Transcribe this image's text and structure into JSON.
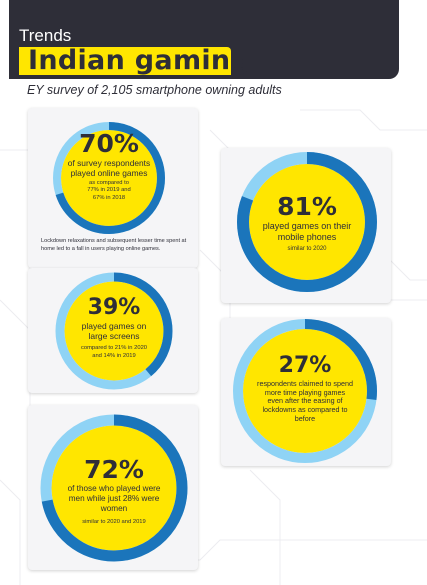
{
  "header": {
    "kicker": "Trends",
    "title": "Indian gaming",
    "subtitle": "EY survey of 2,105 smartphone owning adults"
  },
  "colors": {
    "header_bg": "#2e2e38",
    "accent_yellow": "#ffe600",
    "ring_dark_blue": "#1b75bb",
    "ring_light_blue": "#8fd3f5",
    "card_bg": "#f5f5f7"
  },
  "stats": [
    {
      "value": 70,
      "pct_label": "70%",
      "desc": "of survey respondents played online games",
      "detail": "as compared to 77% in 2019 and 67% in 2018",
      "note": "Lockdown relaxations and subsequent lesser time spent at home led to a fall in users playing online games."
    },
    {
      "value": 81,
      "pct_label": "81%",
      "desc": "played games on their mobile phones",
      "detail": "similar to 2020"
    },
    {
      "value": 39,
      "pct_label": "39%",
      "desc": "played games on large screens",
      "detail": "compared to 21% in 2020 and 14% in 2019"
    },
    {
      "value": 27,
      "pct_label": "27%",
      "desc": "respondents claimed to spend more time playing games even after the easing of lockdowns as compared to before"
    },
    {
      "value": 72,
      "pct_label": "72%",
      "desc": "of those who played were men while just 28% were women",
      "detail": "similar to 2020 and 2019"
    }
  ]
}
